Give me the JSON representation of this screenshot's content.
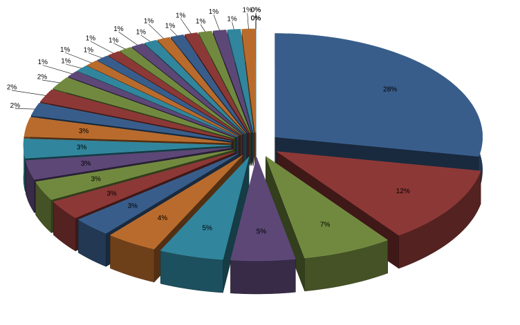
{
  "chart_data": {
    "type": "pie3d",
    "values": [
      28,
      12,
      7,
      5,
      5,
      4,
      3,
      3,
      3,
      3,
      3,
      3,
      2,
      2,
      2,
      1,
      1,
      1,
      1,
      1,
      1,
      1,
      1,
      1,
      1,
      1,
      1,
      1,
      1,
      1,
      0,
      0,
      0,
      0,
      0
    ],
    "value_labels": [
      "28%",
      "12%",
      "7%",
      "5%",
      "5%",
      "4%",
      "3%",
      "3%",
      "3%",
      "3%",
      "3%",
      "3%",
      "2%",
      "2%",
      "2%",
      "1%",
      "1%",
      "1%",
      "1%",
      "1%",
      "1%",
      "1%",
      "1%",
      "1%",
      "1%",
      "1%",
      "1%",
      "1%",
      "1%",
      "1%",
      "0%",
      "0%",
      "0%",
      "0%",
      "0%"
    ],
    "palette": [
      "#385d8a",
      "#8c3836",
      "#71893f",
      "#5c4776",
      "#31859c",
      "#b86b2c"
    ]
  }
}
